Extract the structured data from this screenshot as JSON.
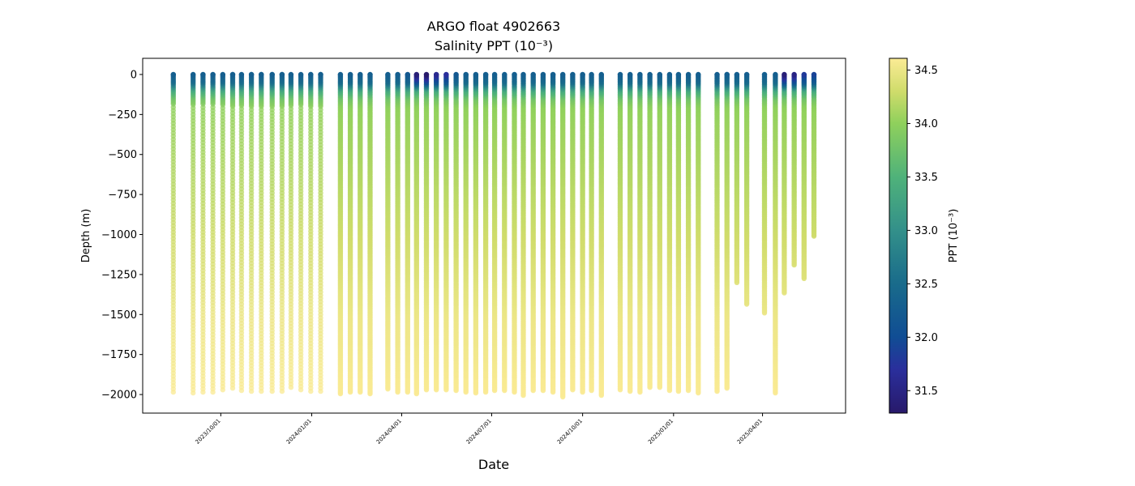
{
  "chart_data": {
    "type": "scatter",
    "title": "ARGO float 4902663",
    "subtitle": "Salinity PPT (10⁻³)",
    "xlabel": "Date",
    "ylabel": "Depth (m)",
    "colorbar_label": "PPT (10⁻³)",
    "xlim": [
      "2023-07-14",
      "2025-06-24"
    ],
    "ylim": [
      -2116,
      101
    ],
    "clim": [
      31.29,
      34.61
    ],
    "colormap_stops": [
      [
        "31.29",
        "#28196a"
      ],
      [
        "31.7",
        "#2a2f9c"
      ],
      [
        "32.0",
        "#104d94"
      ],
      [
        "32.5",
        "#196b8b"
      ],
      [
        "33.0",
        "#33908a"
      ],
      [
        "33.5",
        "#4fb27a"
      ],
      [
        "34.0",
        "#8fd05c"
      ],
      [
        "34.3",
        "#cfdc6b"
      ],
      [
        "34.61",
        "#fbeb95"
      ]
    ],
    "x_ticks": [
      "2023/10/01",
      "2024/01/01",
      "2024/04/01",
      "2024/07/01",
      "2024/10/01",
      "2025/01/01",
      "2025/04/01"
    ],
    "y_ticks": [
      0,
      -250,
      -500,
      -750,
      -1000,
      -1250,
      -1500,
      -1750,
      -2000
    ],
    "y_tick_labels": [
      "0",
      "−250",
      "−500",
      "−750",
      "−1000",
      "−1250",
      "−1500",
      "−1750",
      "−2000"
    ],
    "colorbar_ticks": [
      31.5,
      32.0,
      32.5,
      33.0,
      33.5,
      34.0,
      34.5
    ],
    "colorbar_tick_labels": [
      "31.5",
      "32.0",
      "32.5",
      "33.0",
      "33.5",
      "34.0",
      "34.5"
    ],
    "typical_profile": {
      "depth": [
        0,
        50,
        100,
        150,
        200,
        300,
        500,
        1000,
        1500,
        2000
      ],
      "salinity": [
        32.3,
        32.5,
        33.4,
        33.8,
        34.0,
        34.05,
        34.12,
        34.3,
        34.5,
        34.6
      ]
    },
    "profiles_columns": [
      "date",
      "max_depth",
      "surface_salinity",
      "sparse_sampling"
    ],
    "profiles": [
      [
        "2023-08-14",
        -1985,
        32.3,
        true
      ],
      [
        "2023-09-03",
        -1990,
        32.3,
        true
      ],
      [
        "2023-09-13",
        -1985,
        32.3,
        true
      ],
      [
        "2023-09-23",
        -1985,
        32.3,
        true
      ],
      [
        "2023-10-03",
        -1970,
        32.3,
        true
      ],
      [
        "2023-10-13",
        -1960,
        32.3,
        true
      ],
      [
        "2023-10-22",
        -1975,
        32.3,
        true
      ],
      [
        "2023-11-01",
        -1980,
        32.3,
        true
      ],
      [
        "2023-11-11",
        -1980,
        32.3,
        true
      ],
      [
        "2023-11-22",
        -1980,
        32.3,
        true
      ],
      [
        "2023-12-02",
        -1980,
        32.3,
        true
      ],
      [
        "2023-12-11",
        -1955,
        32.3,
        true
      ],
      [
        "2023-12-21",
        -1970,
        32.3,
        true
      ],
      [
        "2023-12-31",
        -1980,
        32.3,
        true
      ],
      [
        "2024-01-10",
        -1980,
        32.3,
        true
      ],
      [
        "2024-01-30",
        -1995,
        32.3,
        false
      ],
      [
        "2024-02-09",
        -1985,
        32.3,
        false
      ],
      [
        "2024-02-19",
        -1985,
        32.3,
        false
      ],
      [
        "2024-02-29",
        -1995,
        32.3,
        false
      ],
      [
        "2024-03-18",
        -1965,
        32.3,
        false
      ],
      [
        "2024-03-28",
        -1985,
        32.3,
        false
      ],
      [
        "2024-04-07",
        -1985,
        32.2,
        false
      ],
      [
        "2024-04-16",
        -1995,
        31.4,
        false
      ],
      [
        "2024-04-26",
        -1970,
        31.3,
        false
      ],
      [
        "2024-05-06",
        -1970,
        31.6,
        false
      ],
      [
        "2024-05-16",
        -1970,
        31.7,
        false
      ],
      [
        "2024-05-26",
        -1975,
        32.2,
        false
      ],
      [
        "2024-06-05",
        -1985,
        32.3,
        false
      ],
      [
        "2024-06-15",
        -1990,
        32.3,
        false
      ],
      [
        "2024-06-25",
        -1985,
        32.3,
        false
      ],
      [
        "2024-07-04",
        -1975,
        32.3,
        false
      ],
      [
        "2024-07-14",
        -1975,
        32.3,
        false
      ],
      [
        "2024-07-24",
        -1985,
        32.3,
        false
      ],
      [
        "2024-08-02",
        -2005,
        32.3,
        false
      ],
      [
        "2024-08-12",
        -1975,
        32.3,
        false
      ],
      [
        "2024-08-22",
        -1975,
        32.3,
        false
      ],
      [
        "2024-09-01",
        -1985,
        32.3,
        false
      ],
      [
        "2024-09-11",
        -2015,
        32.3,
        false
      ],
      [
        "2024-09-21",
        -1970,
        32.3,
        false
      ],
      [
        "2024-10-01",
        -1985,
        32.3,
        false
      ],
      [
        "2024-10-10",
        -1975,
        32.3,
        false
      ],
      [
        "2024-10-20",
        -2005,
        32.3,
        false
      ],
      [
        "2024-11-08",
        -1970,
        32.3,
        false
      ],
      [
        "2024-11-18",
        -1980,
        32.3,
        false
      ],
      [
        "2024-11-28",
        -1985,
        32.3,
        false
      ],
      [
        "2024-12-08",
        -1955,
        32.3,
        false
      ],
      [
        "2024-12-18",
        -1955,
        32.3,
        false
      ],
      [
        "2024-12-28",
        -1975,
        32.3,
        false
      ],
      [
        "2025-01-06",
        -1980,
        32.3,
        false
      ],
      [
        "2025-01-16",
        -1975,
        32.3,
        false
      ],
      [
        "2025-01-26",
        -1990,
        32.3,
        false
      ],
      [
        "2025-02-14",
        -1980,
        32.3,
        false
      ],
      [
        "2025-02-24",
        -1960,
        32.3,
        false
      ],
      [
        "2025-03-06",
        -1300,
        32.3,
        false
      ],
      [
        "2025-03-16",
        -1435,
        32.3,
        false
      ],
      [
        "2025-04-03",
        -1490,
        32.3,
        false
      ],
      [
        "2025-04-14",
        -1990,
        32.3,
        false
      ],
      [
        "2025-04-23",
        -1365,
        31.4,
        false
      ],
      [
        "2025-05-03",
        -1190,
        31.5,
        false
      ],
      [
        "2025-05-13",
        -1275,
        31.8,
        false
      ],
      [
        "2025-05-23",
        -1010,
        31.9,
        false
      ]
    ]
  }
}
